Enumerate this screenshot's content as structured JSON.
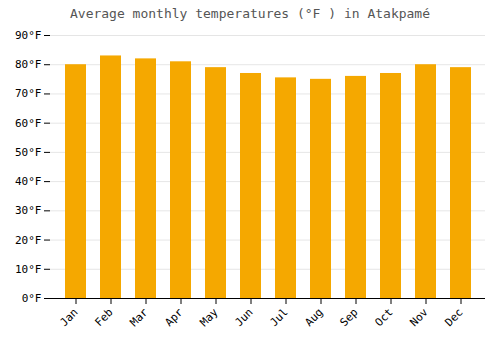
{
  "chart_data": {
    "type": "bar",
    "title": "Average monthly temperatures (°F ) in Atakpamé",
    "categories": [
      "Jan",
      "Feb",
      "Mar",
      "Apr",
      "May",
      "Jun",
      "Jul",
      "Aug",
      "Sep",
      "Oct",
      "Nov",
      "Dec"
    ],
    "values": [
      80,
      83,
      82,
      81,
      79,
      77,
      75.5,
      75,
      76,
      77,
      80,
      79
    ],
    "color": "#F5A800",
    "ylim": [
      0,
      90
    ],
    "yticks": [
      {
        "value": 0,
        "label": "0°F"
      },
      {
        "value": 10,
        "label": "10°F"
      },
      {
        "value": 20,
        "label": "20°F"
      },
      {
        "value": 30,
        "label": "30°F"
      },
      {
        "value": 40,
        "label": "40°F"
      },
      {
        "value": 50,
        "label": "50°F"
      },
      {
        "value": 60,
        "label": "60°F"
      },
      {
        "value": 70,
        "label": "70°F"
      },
      {
        "value": 80,
        "label": "80°F"
      },
      {
        "value": 90,
        "label": "90°F"
      }
    ],
    "grid": true
  }
}
